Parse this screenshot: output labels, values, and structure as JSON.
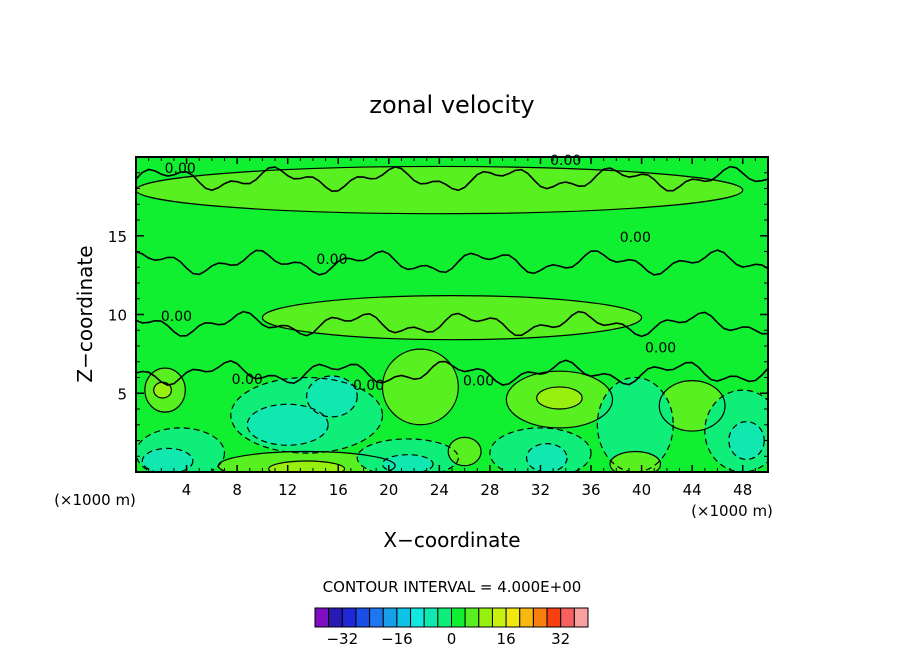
{
  "chart_data": {
    "type": "heatmap",
    "title": "zonal velocity",
    "xlabel": "X−coordinate",
    "ylabel": "Z−coordinate",
    "x_unit": "(×1000 m)",
    "xlim": [
      0,
      50
    ],
    "ylim": [
      0,
      20
    ],
    "x_ticks": [
      4,
      8,
      12,
      16,
      20,
      24,
      28,
      32,
      36,
      40,
      44,
      48
    ],
    "y_ticks": [
      5,
      10,
      15
    ],
    "contour_interval_text": "CONTOUR INTERVAL = 4.000E+00",
    "contour_labels": [
      {
        "text": "0.00",
        "x": 3.5,
        "y": 19.0
      },
      {
        "text": "0.00",
        "x": 34.0,
        "y": 19.5
      },
      {
        "text": "0.00",
        "x": 39.5,
        "y": 14.6
      },
      {
        "text": "0.00",
        "x": 15.5,
        "y": 13.2
      },
      {
        "text": "0.00",
        "x": 3.2,
        "y": 9.6
      },
      {
        "text": "0.00",
        "x": 41.5,
        "y": 7.6
      },
      {
        "text": "0.00",
        "x": 8.8,
        "y": 5.6
      },
      {
        "text": "0.00",
        "x": 18.4,
        "y": 5.2
      },
      {
        "text": "0.00",
        "x": 27.1,
        "y": 5.5
      }
    ],
    "colorbar": {
      "ticks": [
        "−32",
        "−16",
        "0",
        "16",
        "32"
      ],
      "levels": [
        -36,
        -32,
        -28,
        -24,
        -20,
        -16,
        -12,
        -8,
        -4,
        0,
        4,
        8,
        12,
        16,
        20,
        24,
        28,
        32,
        36
      ],
      "colors": [
        "#7e0ebf",
        "#2a1ab4",
        "#1f28d6",
        "#1a4fe6",
        "#1d77f0",
        "#179fe7",
        "#10c2e8",
        "#11e8e0",
        "#10e8b0",
        "#10ee7a",
        "#10f030",
        "#58f020",
        "#98f010",
        "#c8f010",
        "#f0e810",
        "#f8b810",
        "#f88010",
        "#f84010",
        "#f86060",
        "#f8a0a0"
      ]
    },
    "regions": [
      {
        "level": 0,
        "rx": 50,
        "ry": 20,
        "cx": 25,
        "cy": 10,
        "color": "#10f030"
      },
      {
        "level": 4,
        "cx": 24,
        "cy": 17.9,
        "rx": 24,
        "ry": 1.5,
        "color": "#58f020"
      },
      {
        "level": 4,
        "cx": 25,
        "cy": 9.8,
        "rx": 15,
        "ry": 1.4,
        "color": "#58f020"
      },
      {
        "level": 4,
        "cx": 22.5,
        "cy": 5.4,
        "rx": 3,
        "ry": 2.4,
        "color": "#58f020"
      },
      {
        "level": 4,
        "cx": 33.5,
        "cy": 4.6,
        "rx": 4.2,
        "ry": 1.8,
        "color": "#58f020"
      },
      {
        "level": 8,
        "cx": 33.5,
        "cy": 4.7,
        "rx": 1.8,
        "ry": 0.7,
        "color": "#98f010"
      },
      {
        "level": 4,
        "cx": 44,
        "cy": 4.2,
        "rx": 2.6,
        "ry": 1.6,
        "color": "#58f020"
      },
      {
        "level": 4,
        "cx": 2.3,
        "cy": 5.2,
        "rx": 1.6,
        "ry": 1.4,
        "color": "#58f020"
      },
      {
        "level": 8,
        "cx": 2.1,
        "cy": 5.2,
        "rx": 0.7,
        "ry": 0.5,
        "color": "#98f010"
      },
      {
        "level": 4,
        "cx": 13.5,
        "cy": 0.4,
        "rx": 7,
        "ry": 0.9,
        "color": "#58f020"
      },
      {
        "level": 8,
        "cx": 13.5,
        "cy": 0.2,
        "rx": 3,
        "ry": 0.5,
        "color": "#98f010"
      },
      {
        "level": -4,
        "cx": 13.5,
        "cy": 3.6,
        "rx": 6,
        "ry": 2.4,
        "color": "#10ee7a"
      },
      {
        "level": -8,
        "cx": 12,
        "cy": 3.0,
        "rx": 3.2,
        "ry": 1.3,
        "color": "#10e8b0"
      },
      {
        "level": -8,
        "cx": 15.5,
        "cy": 4.8,
        "rx": 2,
        "ry": 1.3,
        "color": "#10e8b0"
      },
      {
        "level": -4,
        "cx": 3.5,
        "cy": 1.2,
        "rx": 3.5,
        "ry": 1.6,
        "color": "#10ee7a"
      },
      {
        "level": -8,
        "cx": 2.5,
        "cy": 0.7,
        "rx": 2,
        "ry": 0.8,
        "color": "#10e8b0"
      },
      {
        "level": -4,
        "cx": 21.5,
        "cy": 0.9,
        "rx": 4,
        "ry": 1.2,
        "color": "#10ee7a"
      },
      {
        "level": -8,
        "cx": 21.5,
        "cy": 0.5,
        "rx": 2,
        "ry": 0.6,
        "color": "#10e8b0"
      },
      {
        "level": -4,
        "cx": 32,
        "cy": 1.2,
        "rx": 4,
        "ry": 1.6,
        "color": "#10ee7a"
      },
      {
        "level": -8,
        "cx": 32.5,
        "cy": 0.9,
        "rx": 1.6,
        "ry": 0.9,
        "color": "#10e8b0"
      },
      {
        "level": -4,
        "cx": 39.5,
        "cy": 3.0,
        "rx": 3,
        "ry": 3,
        "color": "#10ee7a"
      },
      {
        "level": -4,
        "cx": 48,
        "cy": 2.6,
        "rx": 3,
        "ry": 2.6,
        "color": "#10ee7a"
      },
      {
        "level": -8,
        "cx": 48.3,
        "cy": 2.0,
        "rx": 1.4,
        "ry": 1.2,
        "color": "#10e8b0"
      },
      {
        "level": 4,
        "cx": 39.5,
        "cy": 0.5,
        "rx": 2,
        "ry": 0.8,
        "color": "#58f020"
      },
      {
        "level": 4,
        "cx": 26,
        "cy": 1.3,
        "rx": 1.3,
        "ry": 0.9,
        "color": "#58f020"
      }
    ]
  }
}
